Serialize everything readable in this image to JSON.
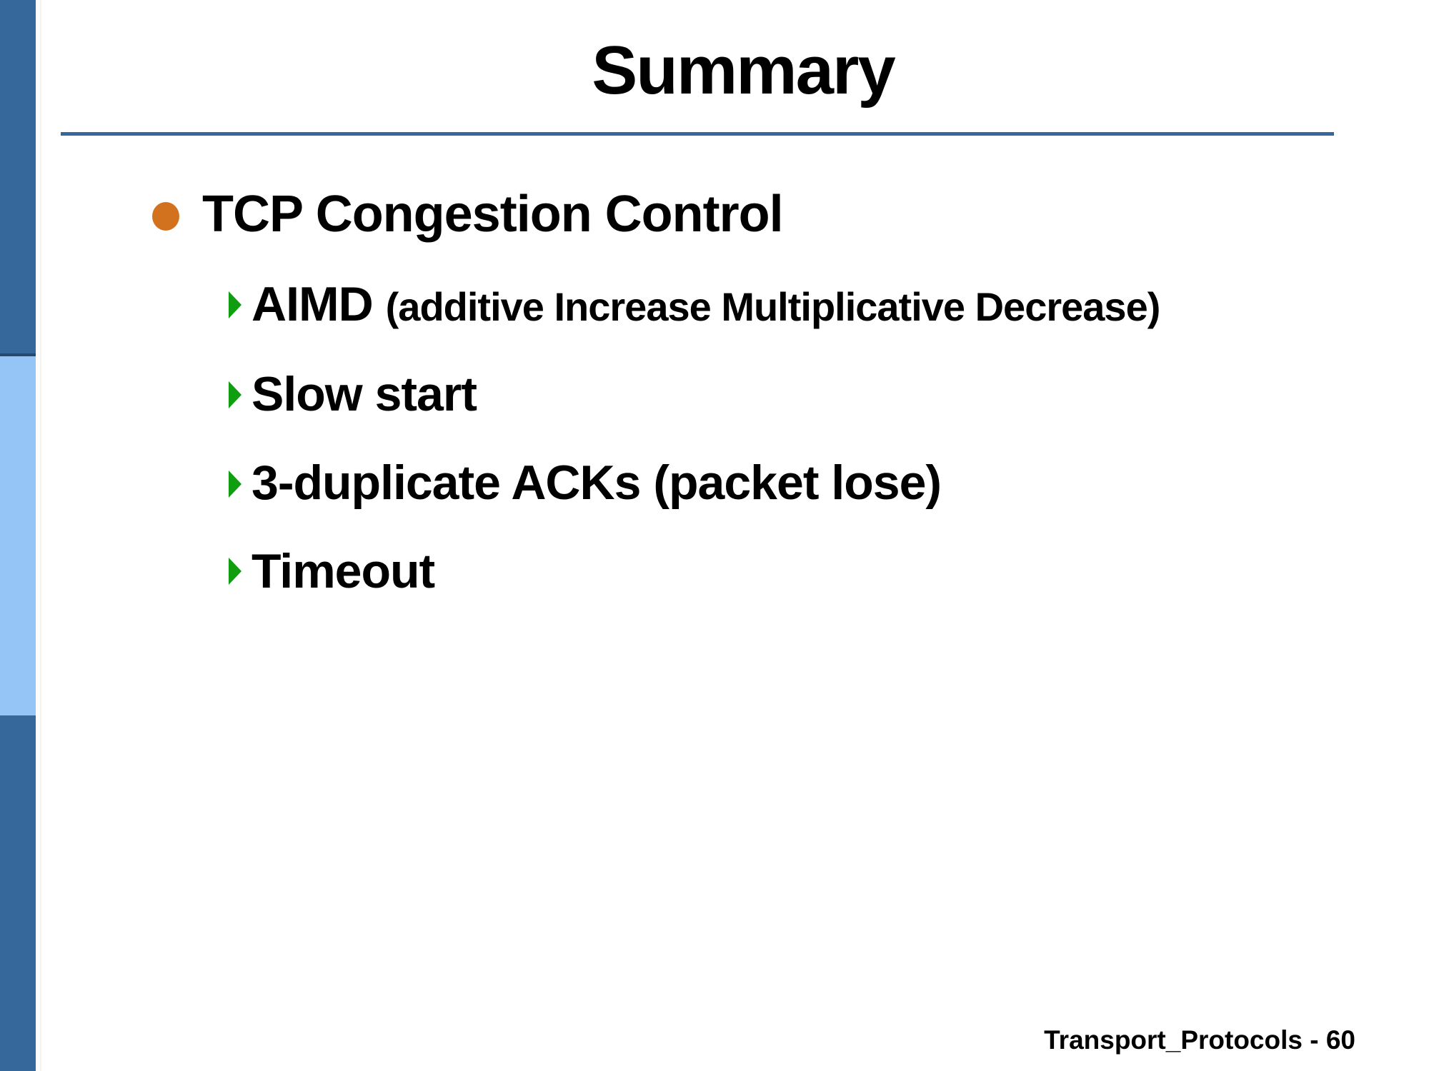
{
  "slide": {
    "title": "Summary",
    "main_bullet": {
      "label": "TCP Congestion Control"
    },
    "sub_bullets": [
      {
        "lead": "AIMD ",
        "rest": "(additive Increase Multiplicative Decrease)"
      },
      {
        "label": "Slow start"
      },
      {
        "label": "3-duplicate ACKs (packet lose)"
      },
      {
        "label": "Timeout"
      }
    ],
    "footer": "Transport_Protocols - 60"
  },
  "icons": {
    "level1_bullet": "orange-filled-circle",
    "level2_bullet": "green-right-triangle-arrow"
  },
  "colors": {
    "sidebar-blue": "#36689B",
    "sidebar-light-blue": "#95C5F6",
    "sidebar-divider": "#27496E",
    "accent-line": "#36689B",
    "bullet-orange": "#D2711E",
    "arrow-green": "#109E10",
    "text-black": "#000000"
  }
}
